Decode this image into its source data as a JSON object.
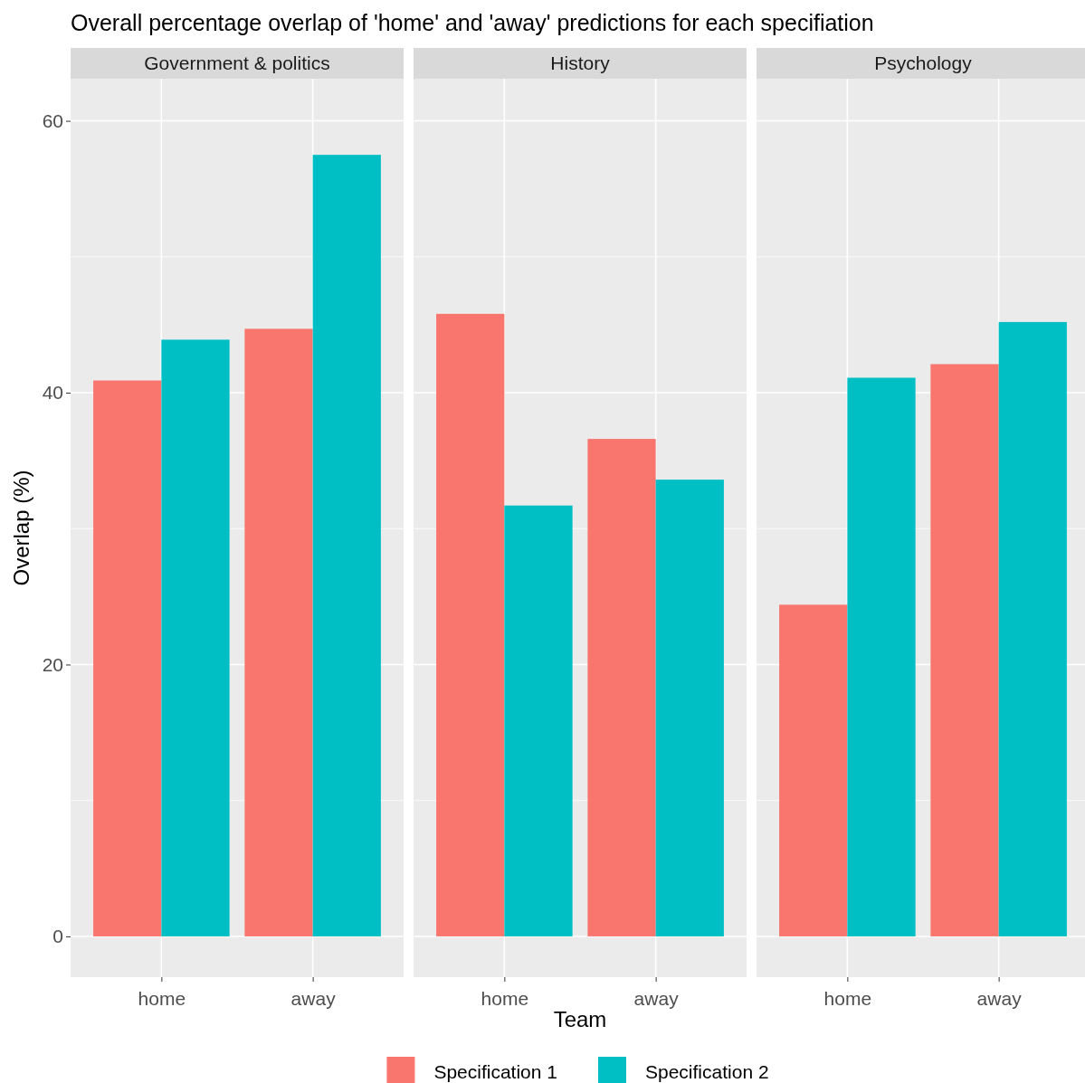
{
  "chart_data": [
    {
      "type": "bar",
      "title": "Government & politics",
      "annotations": [
        "Overall percentage overlap of 'home' and 'away' predictions for each specifiation"
      ],
      "ylabel": "Overlap (%)",
      "categories": [
        "home",
        "away"
      ],
      "ylim": [
        -3,
        63.1
      ],
      "yticks": [
        0,
        20,
        40,
        60
      ],
      "grid": true,
      "legend": "bottom",
      "series": [
        {
          "name": "Specification 1",
          "color": "#f8766d",
          "values": [
            40.9,
            44.7
          ]
        },
        {
          "name": "Specification 2",
          "color": "#00bfc4",
          "values": [
            43.9,
            57.5
          ]
        }
      ]
    },
    {
      "type": "bar",
      "title": "History",
      "xlabel": "Team",
      "categories": [
        "home",
        "away"
      ],
      "ylim": [
        -3,
        63.1
      ],
      "yticks": [
        0,
        20,
        40,
        60
      ],
      "grid": true,
      "tick_labels": "x",
      "series": [
        {
          "color": "#f8766d",
          "values": [
            45.8,
            36.6
          ]
        },
        {
          "color": "#00bfc4",
          "values": [
            31.7,
            33.6
          ]
        }
      ]
    },
    {
      "type": "bar",
      "title": "Psychology",
      "categories": [
        "home",
        "away"
      ],
      "ylim": [
        -3,
        63.1
      ],
      "yticks": [
        0,
        20,
        40,
        60
      ],
      "grid": true,
      "tick_labels": "x",
      "series": [
        {
          "color": "#f8766d",
          "values": [
            24.4,
            42.1
          ]
        },
        {
          "color": "#00bfc4",
          "values": [
            41.1,
            45.2
          ]
        }
      ]
    }
  ]
}
